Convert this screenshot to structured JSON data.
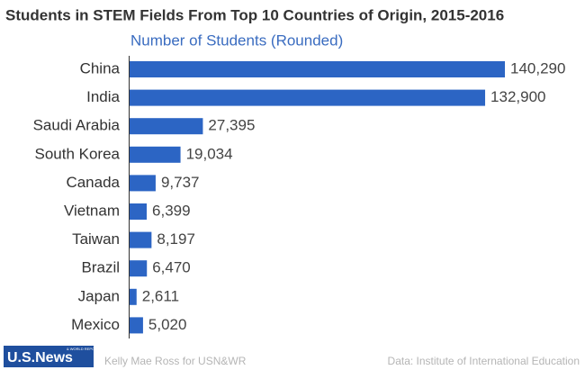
{
  "chart_data": {
    "type": "bar",
    "orientation": "horizontal",
    "title": "Students in STEM Fields From Top 10 Countries of Origin, 2015-2016",
    "subtitle": "Number of Students (Rounded)",
    "categories": [
      "China",
      "India",
      "Saudi Arabia",
      "South Korea",
      "Canada",
      "Vietnam",
      "Taiwan",
      "Brazil",
      "Japan",
      "Mexico"
    ],
    "values": [
      140290,
      132900,
      27395,
      19034,
      9737,
      6399,
      8197,
      6470,
      2611,
      5020
    ],
    "value_labels": [
      "140,290",
      "132,900",
      "27,395",
      "19,034",
      "9,737",
      "6,399",
      "8,197",
      "6,470",
      "2,611",
      "5,020"
    ],
    "color": "#2c65c4",
    "credit": "Kelly Mae Ross for USN&WR",
    "source": "Data: Institute of International Education",
    "logo": {
      "name": "U.S.News",
      "tagline": "& WORLD REPORT"
    }
  }
}
